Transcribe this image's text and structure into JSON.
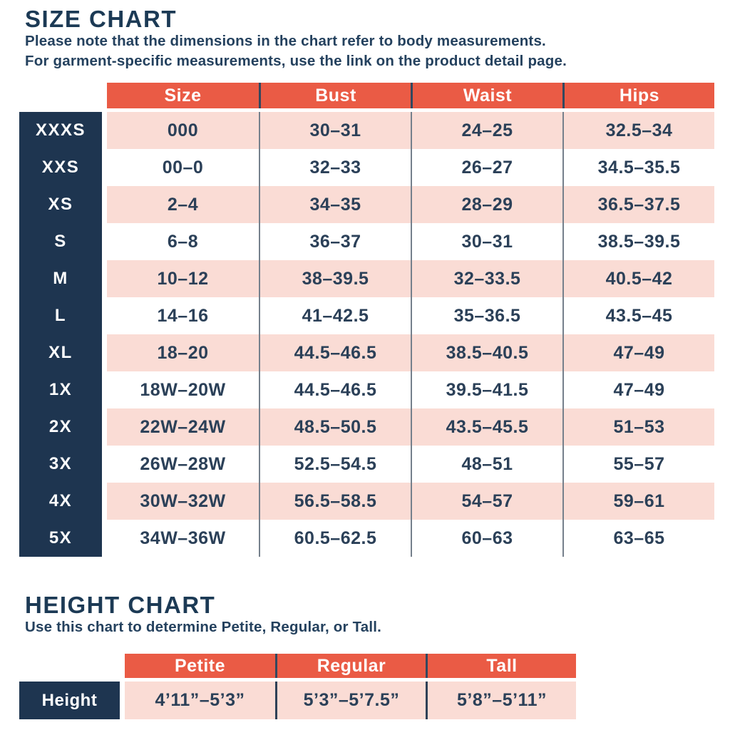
{
  "size_chart": {
    "title": "SIZE CHART",
    "subtitle_line1": "Please note that the dimensions in the chart refer to body measurements.",
    "subtitle_line2": "For garment-specific measurements, use the link on the product detail page.",
    "columns": [
      "Size",
      "Bust",
      "Waist",
      "Hips"
    ],
    "rows": [
      {
        "label": "XXXS",
        "size": "000",
        "bust": "30–31",
        "waist": "24–25",
        "hips": "32.5–34"
      },
      {
        "label": "XXS",
        "size": "00–0",
        "bust": "32–33",
        "waist": "26–27",
        "hips": "34.5–35.5"
      },
      {
        "label": "XS",
        "size": "2–4",
        "bust": "34–35",
        "waist": "28–29",
        "hips": "36.5–37.5"
      },
      {
        "label": "S",
        "size": "6–8",
        "bust": "36–37",
        "waist": "30–31",
        "hips": "38.5–39.5"
      },
      {
        "label": "M",
        "size": "10–12",
        "bust": "38–39.5",
        "waist": "32–33.5",
        "hips": "40.5–42"
      },
      {
        "label": "L",
        "size": "14–16",
        "bust": "41–42.5",
        "waist": "35–36.5",
        "hips": "43.5–45"
      },
      {
        "label": "XL",
        "size": "18–20",
        "bust": "44.5–46.5",
        "waist": "38.5–40.5",
        "hips": "47–49"
      },
      {
        "label": "1X",
        "size": "18W–20W",
        "bust": "44.5–46.5",
        "waist": "39.5–41.5",
        "hips": "47–49"
      },
      {
        "label": "2X",
        "size": "22W–24W",
        "bust": "48.5–50.5",
        "waist": "43.5–45.5",
        "hips": "51–53"
      },
      {
        "label": "3X",
        "size": "26W–28W",
        "bust": "52.5–54.5",
        "waist": "48–51",
        "hips": "55–57"
      },
      {
        "label": "4X",
        "size": "30W–32W",
        "bust": "56.5–58.5",
        "waist": "54–57",
        "hips": "59–61"
      },
      {
        "label": "5X",
        "size": "34W–36W",
        "bust": "60.5–62.5",
        "waist": "60–63",
        "hips": "63–65"
      }
    ]
  },
  "height_chart": {
    "title": "HEIGHT CHART",
    "subtitle": "Use this chart to determine Petite, Regular, or Tall.",
    "columns": [
      "Petite",
      "Regular",
      "Tall"
    ],
    "row_label": "Height",
    "values": [
      "4’11”–5’3”",
      "5’3”–5’7.5”",
      "5’8”–5’11”"
    ]
  },
  "colors": {
    "header_coral": "#EA5B45",
    "row_pink": "#FADCD5",
    "label_navy": "#1E3550",
    "text_navy": "#2B4058",
    "divider_gray": "#75808C"
  }
}
